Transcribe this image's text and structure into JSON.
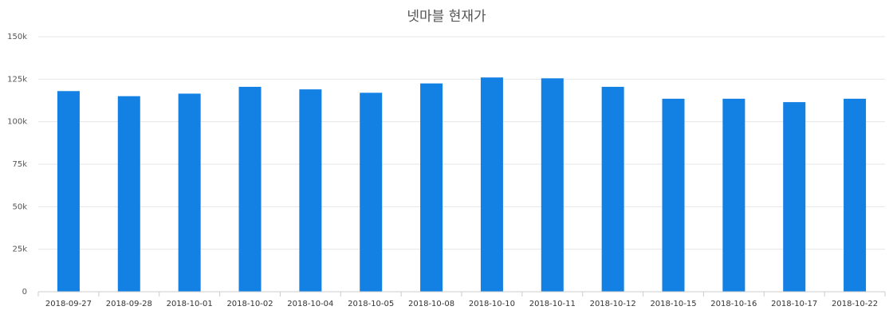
{
  "chart_data": {
    "type": "bar",
    "title": "넷마블 현재가",
    "xlabel": "",
    "ylabel": "",
    "categories": [
      "2018-09-27",
      "2018-09-28",
      "2018-10-01",
      "2018-10-02",
      "2018-10-04",
      "2018-10-05",
      "2018-10-08",
      "2018-10-10",
      "2018-10-11",
      "2018-10-12",
      "2018-10-15",
      "2018-10-16",
      "2018-10-17",
      "2018-10-22"
    ],
    "values": [
      118000,
      115000,
      116500,
      120500,
      119000,
      117000,
      122500,
      126000,
      125500,
      120500,
      113500,
      113500,
      111500,
      113500
    ],
    "ylim": [
      0,
      150000
    ],
    "yticks": [
      0,
      25000,
      50000,
      75000,
      100000,
      125000,
      150000
    ],
    "ytick_labels": [
      "0",
      "25k",
      "50k",
      "75k",
      "100k",
      "125k",
      "150k"
    ],
    "grid": true,
    "legend": "none",
    "colors": {
      "bar": "#1380e3",
      "grid": "#e6e6e6",
      "axis": "#cccccc",
      "title": "#555555"
    }
  }
}
